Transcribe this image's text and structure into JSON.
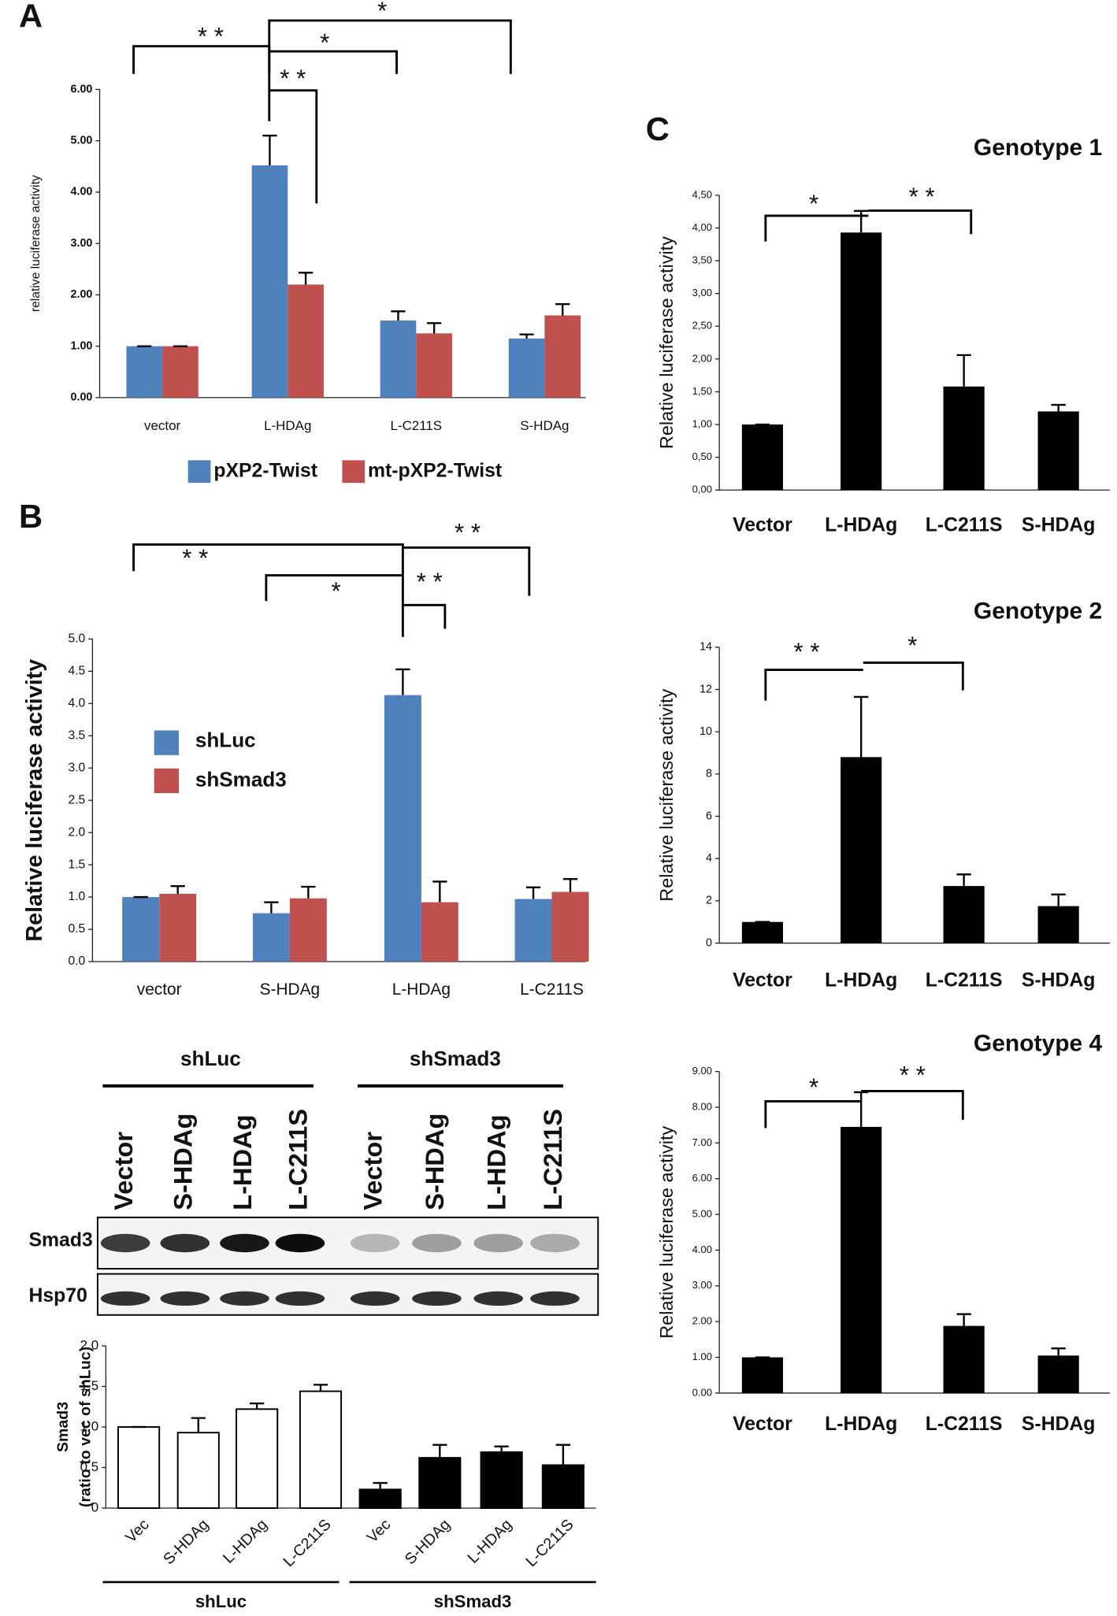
{
  "panel_labels": [
    "A",
    "B",
    "C"
  ],
  "chart_data": [
    {
      "type": "bar",
      "ylabel": "relative luciferase activity",
      "categories": [
        "vector",
        "L-HDAg",
        "L-C211S",
        "S-HDAg"
      ],
      "series": [
        {
          "name": "pXP2-Twist",
          "color": "#4f81bd",
          "values": [
            1,
            4.52,
            1.5,
            1.15
          ],
          "errors": [
            0,
            0.58,
            0.18,
            0.08
          ]
        },
        {
          "name": "mt-pXP2-Twist",
          "color": "#c0504d",
          "values": [
            1,
            2.2,
            1.25,
            1.6
          ],
          "errors": [
            0,
            0.23,
            0.2,
            0.22
          ]
        }
      ],
      "ylim": [
        0,
        6
      ],
      "yticks": [
        {
          "value": 0,
          "label": "0.00"
        },
        {
          "value": 1,
          "label": "1.00"
        },
        {
          "value": 2,
          "label": "2.00"
        },
        {
          "value": 3,
          "label": "3.00"
        },
        {
          "value": 4,
          "label": "4.00"
        },
        {
          "value": 5,
          "label": "5.00"
        },
        {
          "value": 6,
          "label": "6.00"
        }
      ],
      "annotations": [
        "* *",
        "*",
        "*",
        "* *"
      ]
    },
    {
      "type": "bar",
      "ylabel": "Relative luciferase activity",
      "categories": [
        "vector",
        "S-HDAg",
        "L-HDAg",
        "L-C211S"
      ],
      "series": [
        {
          "name": "shLuc",
          "color": "#4f81bd",
          "values": [
            1,
            0.75,
            4.13,
            0.97
          ],
          "errors": [
            0,
            0.17,
            0.4,
            0.18
          ]
        },
        {
          "name": "shSmad3",
          "color": "#c0504d",
          "values": [
            1.05,
            0.98,
            0.92,
            1.08
          ],
          "errors": [
            0.12,
            0.18,
            0.32,
            0.2
          ]
        }
      ],
      "ylim": [
        0,
        5
      ],
      "yticks": [
        {
          "value": 0,
          "label": "0.0"
        },
        {
          "value": 0.5,
          "label": "0.5"
        },
        {
          "value": 1,
          "label": "1.0"
        },
        {
          "value": 1.5,
          "label": "1.5"
        },
        {
          "value": 2,
          "label": "2.0"
        },
        {
          "value": 2.5,
          "label": "2.5"
        },
        {
          "value": 3,
          "label": "3.0"
        },
        {
          "value": 3.5,
          "label": "3.5"
        },
        {
          "value": 4,
          "label": "4.0"
        },
        {
          "value": 4.5,
          "label": "4.5"
        },
        {
          "value": 5,
          "label": "5.0"
        }
      ],
      "annotations": [
        "* *",
        "*",
        "* *",
        "* *"
      ]
    },
    {
      "type": "bar",
      "ylabel": [
        "Smad3",
        "(ratio to vec of shLuc)"
      ],
      "categories": [
        "Vec",
        "S-HDAg",
        "L-HDAg",
        "L-C211S",
        "Vec",
        "S-HDAg",
        "L-HDAg",
        "L-C211S"
      ],
      "values": [
        1,
        0.93,
        1.22,
        1.44,
        0.23,
        0.62,
        0.69,
        0.53
      ],
      "errors": [
        0,
        0.18,
        0.07,
        0.08,
        0.08,
        0.16,
        0.07,
        0.25
      ],
      "colors": [
        "#ffffff",
        "#ffffff",
        "#ffffff",
        "#ffffff",
        "#000000",
        "#000000",
        "#000000",
        "#000000"
      ],
      "groups": [
        "shLuc",
        "shSmad3"
      ],
      "ylim": [
        0,
        2
      ],
      "yticks": [
        0,
        {
          "value": 0.5,
          "label": "0.5"
        },
        {
          "value": 1,
          "label": "1.0"
        },
        {
          "value": 1.5,
          "label": "1.5"
        },
        {
          "value": 2,
          "label": "2.0"
        }
      ]
    },
    {
      "type": "bar",
      "title": "Genotype 1",
      "ylabel": "Relative luciferase activity",
      "categories": [
        "Vector",
        "L-HDAg",
        "L-C211S",
        "S-HDAg"
      ],
      "values": [
        1,
        3.93,
        1.58,
        1.2
      ],
      "errors": [
        0,
        0.33,
        0.48,
        0.1
      ],
      "color": "#000000",
      "ylim": [
        0,
        4.5
      ],
      "yticks": [
        {
          "value": 0,
          "label": "0,00"
        },
        {
          "value": 0.5,
          "label": "0,50"
        },
        {
          "value": 1,
          "label": "1,00"
        },
        {
          "value": 1.5,
          "label": "1,50"
        },
        {
          "value": 2,
          "label": "2,00"
        },
        {
          "value": 2.5,
          "label": "2,50"
        },
        {
          "value": 3,
          "label": "3,00"
        },
        {
          "value": 3.5,
          "label": "3,50"
        },
        {
          "value": 4,
          "label": "4,00"
        },
        {
          "value": 4.5,
          "label": "4,50"
        }
      ],
      "annotations": [
        "*",
        "* *"
      ]
    },
    {
      "type": "bar",
      "title": "Genotype 2",
      "ylabel": "Relative luciferase activity",
      "categories": [
        "Vector",
        "L-HDAg",
        "L-C211S",
        "S-HDAg"
      ],
      "values": [
        1,
        8.8,
        2.7,
        1.75
      ],
      "errors": [
        0,
        2.85,
        0.55,
        0.55
      ],
      "color": "#000000",
      "ylim": [
        0,
        14
      ],
      "yticks": [
        0,
        2,
        4,
        6,
        8,
        10,
        12,
        14
      ],
      "annotations": [
        "* *",
        "*"
      ]
    },
    {
      "type": "bar",
      "title": "Genotype 4",
      "ylabel": "Relative luciferase activity",
      "categories": [
        "Vector",
        "L-HDAg",
        "L-C211S",
        "S-HDAg"
      ],
      "values": [
        1,
        7.45,
        1.88,
        1.05
      ],
      "errors": [
        0,
        0.97,
        0.33,
        0.2
      ],
      "color": "#000000",
      "ylim": [
        0,
        9
      ],
      "yticks": [
        {
          "value": 0,
          "label": "0.00"
        },
        {
          "value": 1,
          "label": "1.00"
        },
        {
          "value": 2,
          "label": "2.00"
        },
        {
          "value": 3,
          "label": "3.00"
        },
        {
          "value": 4,
          "label": "4.00"
        },
        {
          "value": 5,
          "label": "5.00"
        },
        {
          "value": 6,
          "label": "6.00"
        },
        {
          "value": 7,
          "label": "7.00"
        },
        {
          "value": 8,
          "label": "8.00"
        },
        {
          "value": 9,
          "label": "9.00"
        }
      ],
      "annotations": [
        "*",
        "* *"
      ]
    }
  ],
  "blot": {
    "groups": [
      "shLuc",
      "shSmad3"
    ],
    "lanes": [
      "Vector",
      "S-HDAg",
      "L-HDAg",
      "L-C211S",
      "Vector",
      "S-HDAg",
      "L-HDAg",
      "L-C211S"
    ],
    "rows": [
      "Smad3",
      "Hsp70"
    ]
  }
}
